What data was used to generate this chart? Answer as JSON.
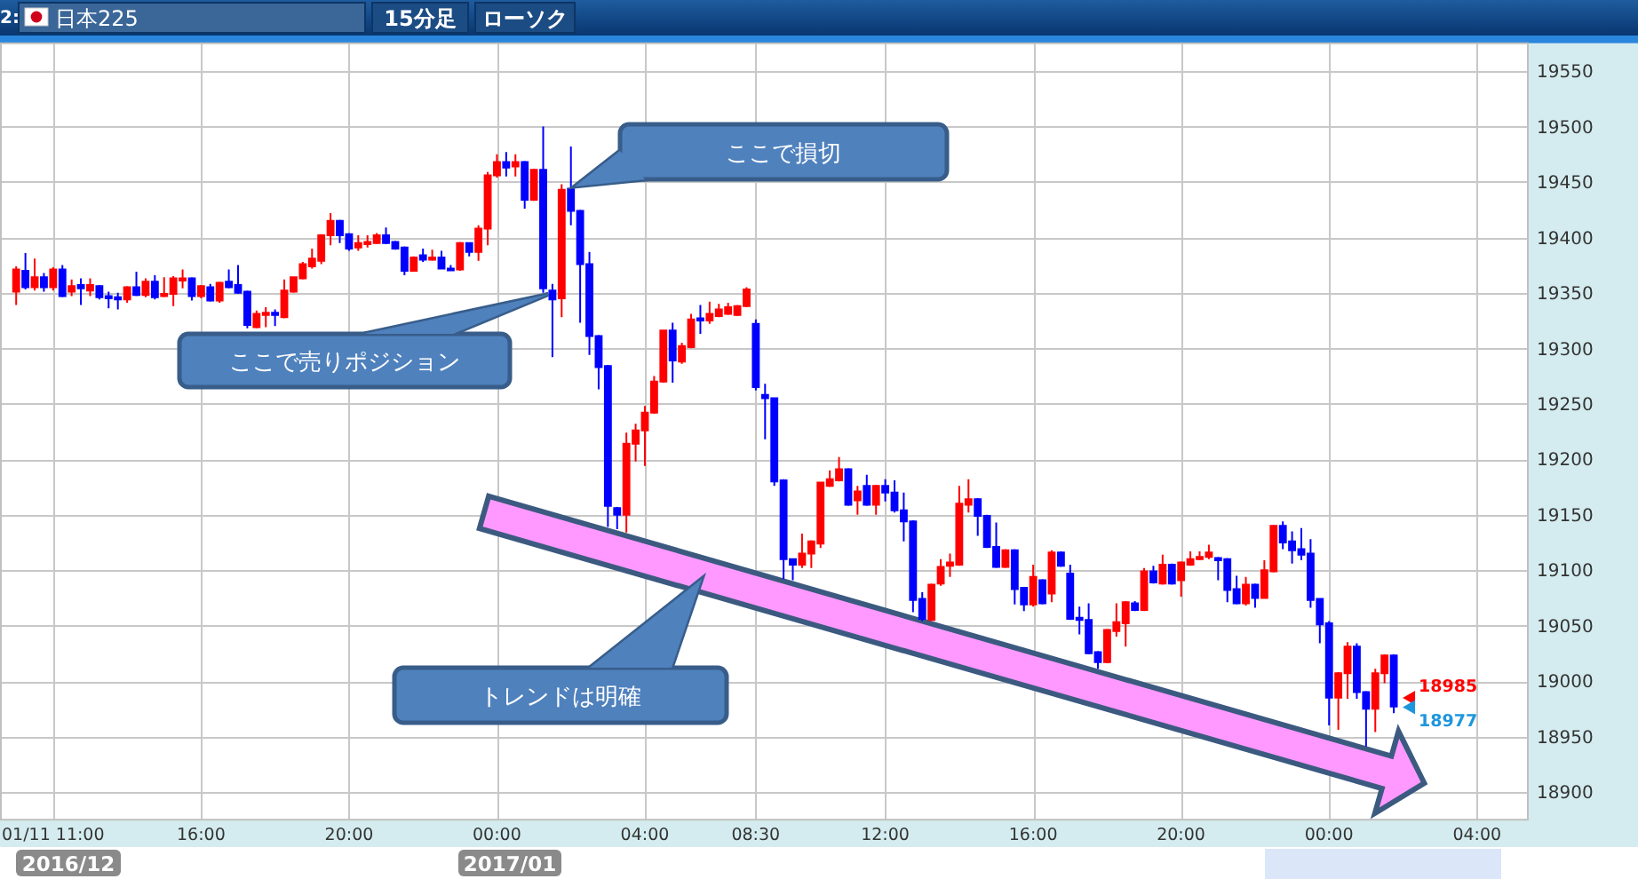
{
  "chart_data": {
    "type": "candlestick",
    "title": "日本225",
    "categories": [
      null,
      null,
      null,
      null,
      "01/11 11:00",
      null,
      null,
      null,
      null,
      null,
      null,
      null,
      null,
      null,
      null,
      null,
      null,
      null,
      null,
      null,
      "16:00",
      null,
      null,
      null,
      null,
      null,
      null,
      null,
      null,
      null,
      null,
      null,
      null,
      null,
      null,
      null,
      "20:00",
      null,
      null,
      null,
      null,
      null,
      null,
      null,
      null,
      null,
      null,
      null,
      null,
      null,
      null,
      null,
      "00:00",
      null,
      null,
      null,
      null,
      null,
      null,
      null,
      null,
      null,
      null,
      null,
      null,
      null,
      null,
      null,
      "04:00",
      null,
      null,
      null,
      null,
      null,
      null,
      null,
      null,
      null,
      null,
      null,
      "08:30",
      null,
      null,
      null,
      null,
      null,
      null,
      null,
      null,
      null,
      null,
      null,
      null,
      null,
      "12:00",
      null,
      null,
      null,
      null,
      null,
      null,
      null,
      null,
      null,
      null,
      null,
      null,
      null,
      null,
      null,
      "16:00",
      null,
      null,
      null,
      null,
      null,
      null,
      null,
      null,
      null,
      null,
      null,
      null,
      null,
      null,
      null,
      "20:00",
      null,
      null,
      null,
      null,
      null,
      null,
      null,
      null,
      null,
      null,
      null,
      null,
      null,
      null,
      null,
      "00:00",
      null,
      null,
      null,
      null,
      null,
      null,
      null,
      null,
      null,
      null,
      null,
      null,
      null,
      null,
      null,
      "04:00",
      null,
      null,
      null,
      null,
      null
    ],
    "ohlc": [
      [
        19351,
        19374,
        19339,
        19371
      ],
      [
        19370,
        19386,
        19353,
        19355
      ],
      [
        19355,
        19381,
        19352,
        19364
      ],
      [
        19364,
        19368,
        19351,
        19355
      ],
      [
        19355,
        19373,
        19352,
        19371
      ],
      [
        19371,
        19375,
        19346,
        19347
      ],
      [
        19351,
        19362,
        19347,
        19356
      ],
      [
        19357,
        19363,
        19339,
        19354
      ],
      [
        19352,
        19363,
        19347,
        19357
      ],
      [
        19356,
        19357,
        19344,
        19346
      ],
      [
        19347,
        19351,
        19336,
        19345
      ],
      [
        19346,
        19350,
        19335,
        19344
      ],
      [
        19344,
        19356,
        19341,
        19355
      ],
      [
        19355,
        19369,
        19347,
        19348
      ],
      [
        19348,
        19363,
        19346,
        19360
      ],
      [
        19360,
        19366,
        19344,
        19346
      ],
      [
        19347,
        19364,
        19346,
        19349
      ],
      [
        19349,
        19365,
        19338,
        19363
      ],
      [
        19361,
        19371,
        19354,
        19363
      ],
      [
        19363,
        19364,
        19343,
        19347
      ],
      [
        19347,
        19357,
        19345,
        19356
      ],
      [
        19355,
        19358,
        19342,
        19343
      ],
      [
        19343,
        19360,
        19341,
        19359
      ],
      [
        19360,
        19371,
        19354,
        19355
      ],
      [
        19357,
        19375,
        19349,
        19350
      ],
      [
        19351,
        19352,
        19318,
        19321
      ],
      [
        19319,
        19334,
        19318,
        19331
      ],
      [
        19330,
        19337,
        19319,
        19332
      ],
      [
        19332,
        19335,
        19320,
        19330
      ],
      [
        19328,
        19362,
        19327,
        19352
      ],
      [
        19351,
        19364,
        19350,
        19364
      ],
      [
        19363,
        19378,
        19362,
        19376
      ],
      [
        19374,
        19390,
        19372,
        19381
      ],
      [
        19379,
        19403,
        19376,
        19402
      ],
      [
        19402,
        19422,
        19393,
        19415
      ],
      [
        19415,
        19416,
        19395,
        19402
      ],
      [
        19403,
        19404,
        19388,
        19390
      ],
      [
        19391,
        19402,
        19388,
        19395
      ],
      [
        19394,
        19402,
        19391,
        19396
      ],
      [
        19395,
        19404,
        19394,
        19402
      ],
      [
        19402,
        19409,
        19394,
        19395
      ],
      [
        19396,
        19397,
        19389,
        19390
      ],
      [
        19391,
        19392,
        19366,
        19370
      ],
      [
        19370,
        19383,
        19369,
        19382
      ],
      [
        19384,
        19390,
        19378,
        19380
      ],
      [
        19380,
        19389,
        19379,
        19382
      ],
      [
        19382,
        19388,
        19372,
        19372
      ],
      [
        19372,
        19375,
        19370,
        19371
      ],
      [
        19371,
        19396,
        19370,
        19395
      ],
      [
        19395,
        19395,
        19383,
        19387
      ],
      [
        19387,
        19411,
        19379,
        19408
      ],
      [
        19408,
        19459,
        19393,
        19456
      ],
      [
        19456,
        19475,
        19454,
        19468
      ],
      [
        19468,
        19477,
        19455,
        19463
      ],
      [
        19464,
        19475,
        19455,
        19468
      ],
      [
        19468,
        19469,
        19426,
        19434
      ],
      [
        19434,
        19462,
        19433,
        19461
      ],
      [
        19461,
        19500,
        19350,
        19354
      ],
      [
        19352,
        19358,
        19292,
        19344
      ],
      [
        19345,
        19448,
        19328,
        19443
      ],
      [
        19444,
        19482,
        19411,
        19424
      ],
      [
        19424,
        19425,
        19323,
        19376
      ],
      [
        19376,
        19387,
        19294,
        19311
      ],
      [
        19311,
        19312,
        19263,
        19283
      ],
      [
        19284,
        19285,
        19139,
        19158
      ],
      [
        19156,
        19157,
        19137,
        19150
      ],
      [
        19150,
        19224,
        19134,
        19214
      ],
      [
        19214,
        19232,
        19198,
        19226
      ],
      [
        19226,
        19248,
        19194,
        19242
      ],
      [
        19242,
        19275,
        19241,
        19270
      ],
      [
        19270,
        19316,
        19269,
        19316
      ],
      [
        19316,
        19323,
        19269,
        19289
      ],
      [
        19288,
        19305,
        19286,
        19302
      ],
      [
        19301,
        19331,
        19300,
        19326
      ],
      [
        19327,
        19339,
        19313,
        19325
      ],
      [
        19325,
        19342,
        19322,
        19331
      ],
      [
        19329,
        19340,
        19328,
        19335
      ],
      [
        19331,
        19341,
        19330,
        19337
      ],
      [
        19330,
        19339,
        19329,
        19338
      ],
      [
        19338,
        19355,
        19337,
        19353
      ],
      [
        19322,
        19326,
        19262,
        19265
      ],
      [
        19258,
        19268,
        19218,
        19255
      ],
      [
        19255,
        19255,
        19176,
        19180
      ],
      [
        19181,
        19182,
        19092,
        19110
      ],
      [
        19110,
        19110,
        19091,
        19105
      ],
      [
        19105,
        19133,
        19102,
        19115
      ],
      [
        19115,
        19127,
        19102,
        19126
      ],
      [
        19124,
        19179,
        19120,
        19179
      ],
      [
        19176,
        19190,
        19175,
        19182
      ],
      [
        19181,
        19202,
        19180,
        19191
      ],
      [
        19191,
        19192,
        19158,
        19159
      ],
      [
        19163,
        19176,
        19150,
        19171
      ],
      [
        19176,
        19186,
        19158,
        19159
      ],
      [
        19159,
        19177,
        19150,
        19176
      ],
      [
        19176,
        19182,
        19162,
        19170
      ],
      [
        19170,
        19181,
        19152,
        19154
      ],
      [
        19154,
        19170,
        19126,
        19144
      ],
      [
        19144,
        19145,
        19062,
        19073
      ],
      [
        19074,
        19080,
        19054,
        19056
      ],
      [
        19055,
        19088,
        19054,
        19087
      ],
      [
        19088,
        19110,
        19086,
        19103
      ],
      [
        19104,
        19115,
        19094,
        19107
      ],
      [
        19105,
        19176,
        19104,
        19160
      ],
      [
        19159,
        19182,
        19152,
        19164
      ],
      [
        19164,
        19165,
        19131,
        19149
      ],
      [
        19149,
        19150,
        19120,
        19121
      ],
      [
        19121,
        19143,
        19102,
        19103
      ],
      [
        19103,
        19119,
        19102,
        19118
      ],
      [
        19118,
        19119,
        19069,
        19083
      ],
      [
        19084,
        19085,
        19063,
        19069
      ],
      [
        19069,
        19105,
        19067,
        19094
      ],
      [
        19091,
        19092,
        19069,
        19070
      ],
      [
        19079,
        19118,
        19071,
        19116
      ],
      [
        19116,
        19117,
        19103,
        19104
      ],
      [
        19097,
        19105,
        19055,
        19056
      ],
      [
        19057,
        19067,
        19042,
        19055
      ],
      [
        19055,
        19070,
        19024,
        19025
      ],
      [
        19026,
        19027,
        19011,
        19017
      ],
      [
        19017,
        19047,
        19016,
        19046
      ],
      [
        19045,
        19070,
        19040,
        19053
      ],
      [
        19052,
        19072,
        19031,
        19071
      ],
      [
        19070,
        19072,
        19063,
        19064
      ],
      [
        19064,
        19102,
        19063,
        19099
      ],
      [
        19099,
        19104,
        19088,
        19089
      ],
      [
        19088,
        19114,
        19087,
        19105
      ],
      [
        19105,
        19106,
        19087,
        19088
      ],
      [
        19091,
        19108,
        19076,
        19107
      ],
      [
        19105,
        19117,
        19104,
        19110
      ],
      [
        19110,
        19117,
        19109,
        19112
      ],
      [
        19112,
        19123,
        19110,
        19116
      ],
      [
        19111,
        19112,
        19091,
        19109
      ],
      [
        19110,
        19111,
        19071,
        19082
      ],
      [
        19083,
        19095,
        19069,
        19070
      ],
      [
        19070,
        19094,
        19068,
        19087
      ],
      [
        19087,
        19088,
        19066,
        19075
      ],
      [
        19075,
        19109,
        19074,
        19100
      ],
      [
        19099,
        19141,
        19098,
        19140
      ],
      [
        19140,
        19144,
        19119,
        19125
      ],
      [
        19126,
        19135,
        19106,
        19118
      ],
      [
        19119,
        19138,
        19109,
        19114
      ],
      [
        19115,
        19128,
        19066,
        19073
      ],
      [
        19074,
        19074,
        19034,
        19051
      ],
      [
        19052,
        19054,
        18960,
        18985
      ],
      [
        18985,
        19008,
        18956,
        19007
      ],
      [
        19007,
        19035,
        18984,
        19031
      ],
      [
        19031,
        19034,
        18984,
        18990
      ],
      [
        18990,
        18991,
        18941,
        18975
      ],
      [
        18975,
        19011,
        18954,
        19007
      ],
      [
        19007,
        19024,
        18998,
        19023
      ],
      [
        19023,
        19024,
        18971,
        18977
      ],
      null,
      null,
      null,
      null,
      null,
      null,
      null,
      null,
      null,
      null,
      null,
      null,
      null,
      null
    ],
    "colors": [
      "#ff0000",
      "#0000ff",
      "#ff0000",
      "#0000ff",
      "#ff0000",
      "#0000ff",
      "#ff0000",
      "#0000ff",
      "#ff0000",
      "#0000ff",
      "#0000ff",
      "#0000ff",
      "#ff0000",
      "#0000ff",
      "#ff0000",
      "#0000ff",
      "#ff0000",
      "#ff0000",
      "#ff0000",
      "#0000ff",
      "#ff0000",
      "#0000ff",
      "#ff0000",
      "#0000ff",
      "#0000ff",
      "#0000ff",
      "#ff0000",
      "#ff0000",
      "#0000ff",
      "#ff0000",
      "#ff0000",
      "#ff0000",
      "#ff0000",
      "#ff0000",
      "#ff0000",
      "#0000ff",
      "#0000ff",
      "#ff0000",
      "#ff0000",
      "#ff0000",
      "#0000ff",
      "#0000ff",
      "#0000ff",
      "#ff0000",
      "#0000ff",
      "#ff0000",
      "#0000ff",
      "#0000ff",
      "#ff0000",
      "#0000ff",
      "#ff0000",
      "#ff0000",
      "#ff0000",
      "#0000ff",
      "#ff0000",
      "#0000ff",
      "#ff0000",
      "#0000ff",
      "#0000ff",
      "#ff0000",
      "#0000ff",
      "#0000ff",
      "#0000ff",
      "#0000ff",
      "#0000ff",
      "#0000ff",
      "#ff0000",
      "#ff0000",
      "#ff0000",
      "#ff0000",
      "#ff0000",
      "#0000ff",
      "#ff0000",
      "#ff0000",
      "#0000ff",
      "#ff0000",
      "#ff0000",
      "#ff0000",
      "#ff0000",
      "#ff0000",
      "#0000ff",
      "#0000ff",
      "#0000ff",
      "#0000ff",
      "#0000ff",
      "#ff0000",
      "#ff0000",
      "#ff0000",
      "#ff0000",
      "#ff0000",
      "#0000ff",
      "#ff0000",
      "#0000ff",
      "#ff0000",
      "#0000ff",
      "#0000ff",
      "#0000ff",
      "#0000ff",
      "#0000ff",
      "#ff0000",
      "#ff0000",
      "#ff0000",
      "#ff0000",
      "#ff0000",
      "#0000ff",
      "#0000ff",
      "#0000ff",
      "#ff0000",
      "#0000ff",
      "#0000ff",
      "#ff0000",
      "#0000ff",
      "#ff0000",
      "#0000ff",
      "#0000ff",
      "#0000ff",
      "#0000ff",
      "#0000ff",
      "#ff0000",
      "#ff0000",
      "#ff0000",
      "#0000ff",
      "#ff0000",
      "#0000ff",
      "#ff0000",
      "#0000ff",
      "#ff0000",
      "#ff0000",
      "#ff0000",
      "#ff0000",
      "#0000ff",
      "#0000ff",
      "#0000ff",
      "#ff0000",
      "#0000ff",
      "#ff0000",
      "#ff0000",
      "#0000ff",
      "#0000ff",
      "#0000ff",
      "#0000ff",
      "#0000ff",
      "#0000ff",
      "#ff0000",
      "#ff0000",
      "#0000ff",
      "#0000ff",
      "#ff0000",
      "#ff0000",
      "#0000ff",
      null,
      null,
      null,
      null,
      null,
      null,
      null,
      null,
      null,
      null,
      null,
      null,
      null,
      null
    ],
    "ylim": [
      18875,
      19575
    ],
    "yticks": [
      18900,
      18950,
      19000,
      19050,
      19100,
      19150,
      19200,
      19250,
      19300,
      19350,
      19400,
      19450,
      19500,
      19550
    ],
    "grid": true,
    "annotations": [
      "2:",
      "15分足",
      "ローソク",
      "ここで損切",
      "ここで売りポジション",
      "トレンドは明確",
      "2016/12",
      "2017/01",
      "18985",
      "18977"
    ]
  }
}
